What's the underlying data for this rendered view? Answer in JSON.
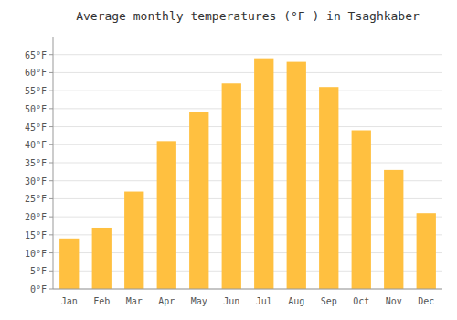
{
  "chart_data": {
    "type": "bar",
    "title": "Average monthly temperatures (°F ) in Tsaghkaber",
    "categories": [
      "Jan",
      "Feb",
      "Mar",
      "Apr",
      "May",
      "Jun",
      "Jul",
      "Aug",
      "Sep",
      "Oct",
      "Nov",
      "Dec"
    ],
    "values": [
      14,
      17,
      27,
      41,
      49,
      57,
      64,
      63,
      56,
      44,
      33,
      21
    ],
    "color": "#FFC040",
    "ylim": [
      0,
      70
    ],
    "yticks": [
      {
        "value": 0,
        "label": "0°F"
      },
      {
        "value": 5,
        "label": "5°F"
      },
      {
        "value": 10,
        "label": "10°F"
      },
      {
        "value": 15,
        "label": "15°F"
      },
      {
        "value": 20,
        "label": "20°F"
      },
      {
        "value": 25,
        "label": "25°F"
      },
      {
        "value": 30,
        "label": "30°F"
      },
      {
        "value": 35,
        "label": "35°F"
      },
      {
        "value": 40,
        "label": "40°F"
      },
      {
        "value": 45,
        "label": "45°F"
      },
      {
        "value": 50,
        "label": "50°F"
      },
      {
        "value": 55,
        "label": "55°F"
      },
      {
        "value": 60,
        "label": "60°F"
      },
      {
        "value": 65,
        "label": "65°F"
      }
    ],
    "grid": true
  }
}
